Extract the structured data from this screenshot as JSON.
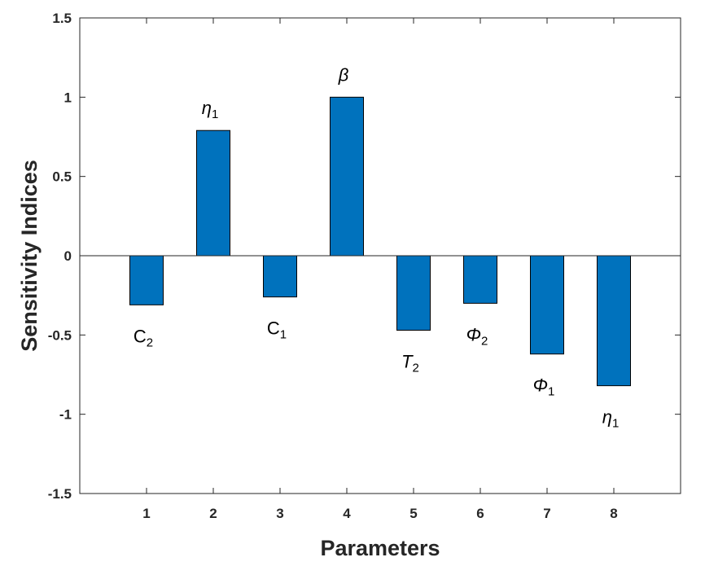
{
  "chart_data": {
    "type": "bar",
    "categories": [
      "1",
      "2",
      "3",
      "4",
      "5",
      "6",
      "7",
      "8"
    ],
    "values": [
      -0.31,
      0.79,
      -0.26,
      1.0,
      -0.47,
      -0.3,
      -0.62,
      -0.82
    ],
    "bar_labels": [
      {
        "symbol": "C",
        "sub": "2",
        "italic": false
      },
      {
        "symbol": "η",
        "sub": "1",
        "italic": true
      },
      {
        "symbol": "C",
        "sub": "1",
        "italic": false
      },
      {
        "symbol": "β",
        "sub": "",
        "italic": true
      },
      {
        "symbol": "T",
        "sub": "2",
        "italic": true
      },
      {
        "symbol": "Φ",
        "sub": "2",
        "italic": true
      },
      {
        "symbol": "Φ",
        "sub": "1",
        "italic": true
      },
      {
        "symbol": "η",
        "sub": "1",
        "italic": true
      }
    ],
    "xlabel": "Parameters",
    "ylabel": "Sensitivity Indices",
    "ylim": [
      -1.5,
      1.5
    ],
    "yticks": [
      "-1.5",
      "-1",
      "-0.5",
      "0",
      "0.5",
      "1",
      "1.5"
    ],
    "ytick_values": [
      -1.5,
      -1,
      -0.5,
      0,
      0.5,
      1,
      1.5
    ],
    "xlim": [
      0,
      9
    ],
    "grid": false,
    "bar_color": "#0072BD",
    "bar_edge_color": "#000000"
  }
}
